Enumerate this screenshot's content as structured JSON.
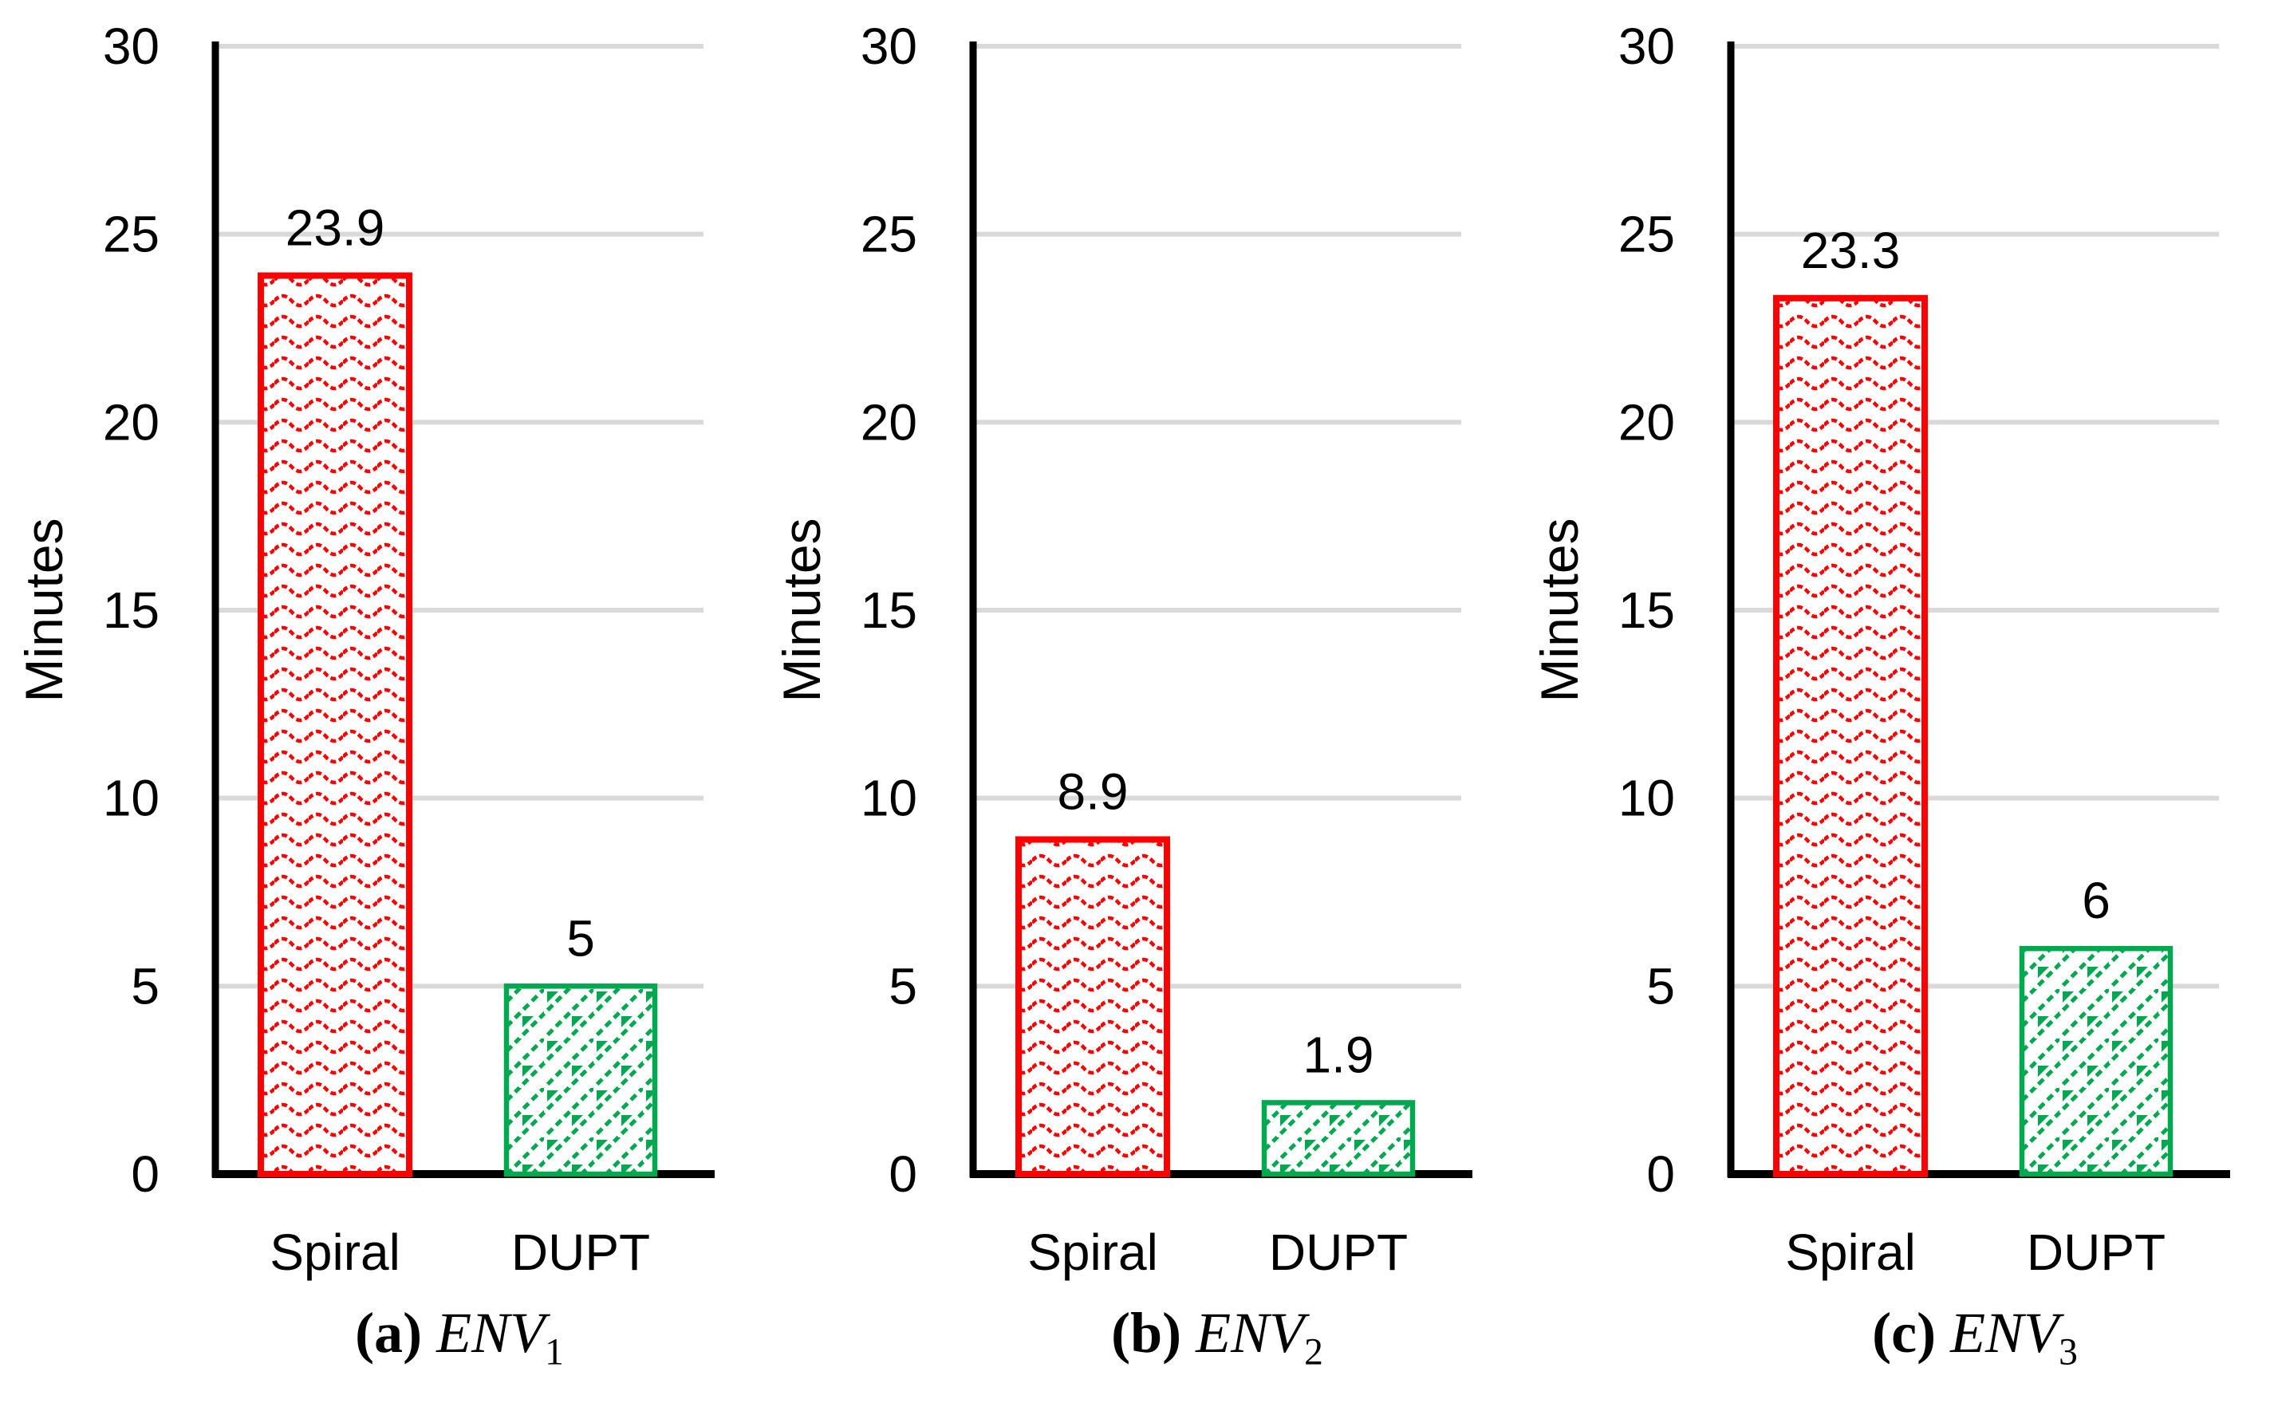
{
  "colors": {
    "spiral_red": "#FF0000",
    "dupt_green": "#00A84F",
    "gridline": "#D9D9D9",
    "axis": "#000000",
    "text": "#000000"
  },
  "chart_data": [
    {
      "type": "bar",
      "caption_prefix": "(a)",
      "caption_name": "ENV",
      "caption_sub": "1",
      "ylabel": "Minutes",
      "ylim": [
        0,
        30
      ],
      "yticks": [
        0,
        5,
        10,
        15,
        20,
        25,
        30
      ],
      "grid": true,
      "legend_position": "none",
      "categories": [
        "Spiral",
        "DUPT"
      ],
      "values": [
        23.9,
        5
      ],
      "value_labels": [
        "23.9",
        "5"
      ],
      "series_colors": [
        "#FF0000",
        "#00A84F"
      ],
      "series_patterns": [
        "red-wave-hatch",
        "green-diagonal-brick-hatch"
      ]
    },
    {
      "type": "bar",
      "caption_prefix": "(b)",
      "caption_name": "ENV",
      "caption_sub": "2",
      "ylabel": "Minutes",
      "ylim": [
        0,
        30
      ],
      "yticks": [
        0,
        5,
        10,
        15,
        20,
        25,
        30
      ],
      "grid": true,
      "legend_position": "none",
      "categories": [
        "Spiral",
        "DUPT"
      ],
      "values": [
        8.9,
        1.9
      ],
      "value_labels": [
        "8.9",
        "1.9"
      ],
      "series_colors": [
        "#FF0000",
        "#00A84F"
      ],
      "series_patterns": [
        "red-wave-hatch",
        "green-diagonal-brick-hatch"
      ]
    },
    {
      "type": "bar",
      "caption_prefix": "(c)",
      "caption_name": "ENV",
      "caption_sub": "3",
      "ylabel": "Minutes",
      "ylim": [
        0,
        30
      ],
      "yticks": [
        0,
        5,
        10,
        15,
        20,
        25,
        30
      ],
      "grid": true,
      "legend_position": "none",
      "categories": [
        "Spiral",
        "DUPT"
      ],
      "values": [
        23.3,
        6
      ],
      "value_labels": [
        "23.3",
        "6"
      ],
      "series_colors": [
        "#FF0000",
        "#00A84F"
      ],
      "series_patterns": [
        "red-wave-hatch",
        "green-diagonal-brick-hatch"
      ]
    }
  ]
}
